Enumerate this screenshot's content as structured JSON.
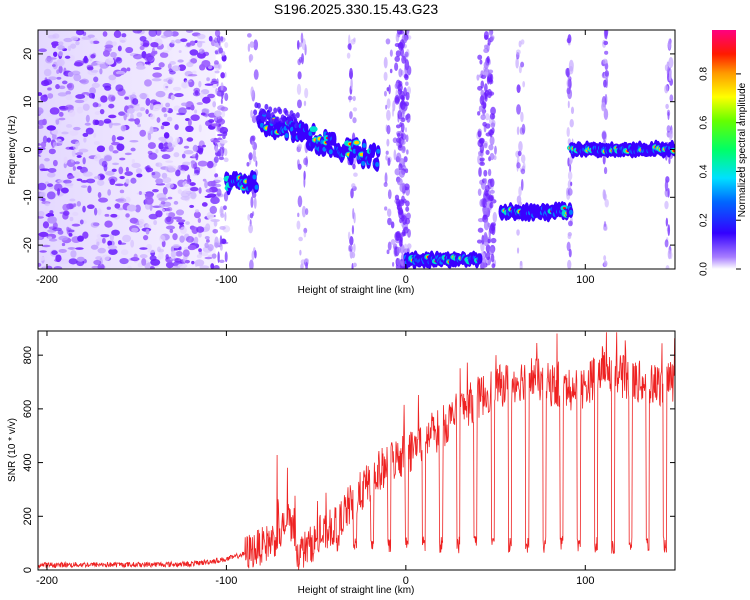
{
  "title": "S196.2025.330.15.43.G23",
  "chart_data": [
    {
      "type": "heatmap",
      "xlabel": "Height of straight line (km)",
      "ylabel": "Frequency (Hz)",
      "xlim": [
        -205,
        150
      ],
      "ylim": [
        -25,
        25
      ],
      "xticks": [
        -200,
        -100,
        0,
        100
      ],
      "yticks": [
        -20,
        -10,
        0,
        10,
        20
      ],
      "colorbar": {
        "label": "Normalized spectral amplitude",
        "range": [
          0,
          1
        ],
        "ticks": [
          "0.0",
          "0.2",
          "0.4",
          "0.6",
          "0.8"
        ]
      },
      "segments": [
        {
          "name": "noise",
          "x": [
            -205,
            -106
          ],
          "freq": [
            -25,
            25
          ]
        },
        {
          "name": "track-a",
          "x": [
            -100,
            -83
          ],
          "freq": -7
        },
        {
          "name": "track-b",
          "x": [
            -82,
            -15
          ],
          "freq": [
            6,
            -2
          ]
        },
        {
          "name": "track-c",
          "x": [
            0,
            42
          ],
          "freq": -23
        },
        {
          "name": "track-d",
          "x": [
            53,
            92
          ],
          "freq": -13
        },
        {
          "name": "track-e",
          "x": [
            92,
            150
          ],
          "freq": 0
        }
      ]
    },
    {
      "type": "line",
      "xlabel": "Height of straight line (km)",
      "ylabel": "SNR (10 * v/v)",
      "xlim": [
        -205,
        150
      ],
      "ylim": [
        0,
        890
      ],
      "xticks": [
        -200,
        -100,
        0,
        100
      ],
      "yticks": [
        0,
        200,
        400,
        600,
        800
      ],
      "series": [
        {
          "name": "SNR",
          "color": "#ee2222",
          "x": [
            -205,
            -180,
            -150,
            -120,
            -100,
            -90,
            -80,
            -70,
            -65,
            -60,
            -50,
            -40,
            -30,
            -20,
            -10,
            0,
            10,
            20,
            30,
            40,
            50,
            60,
            70,
            80,
            90,
            100,
            110,
            120,
            130,
            140,
            150
          ],
          "values": [
            18,
            20,
            20,
            22,
            40,
            60,
            90,
            130,
            200,
            60,
            110,
            160,
            250,
            330,
            400,
            430,
            480,
            530,
            590,
            640,
            680,
            700,
            720,
            690,
            670,
            680,
            760,
            720,
            700,
            690,
            700
          ]
        }
      ]
    }
  ]
}
